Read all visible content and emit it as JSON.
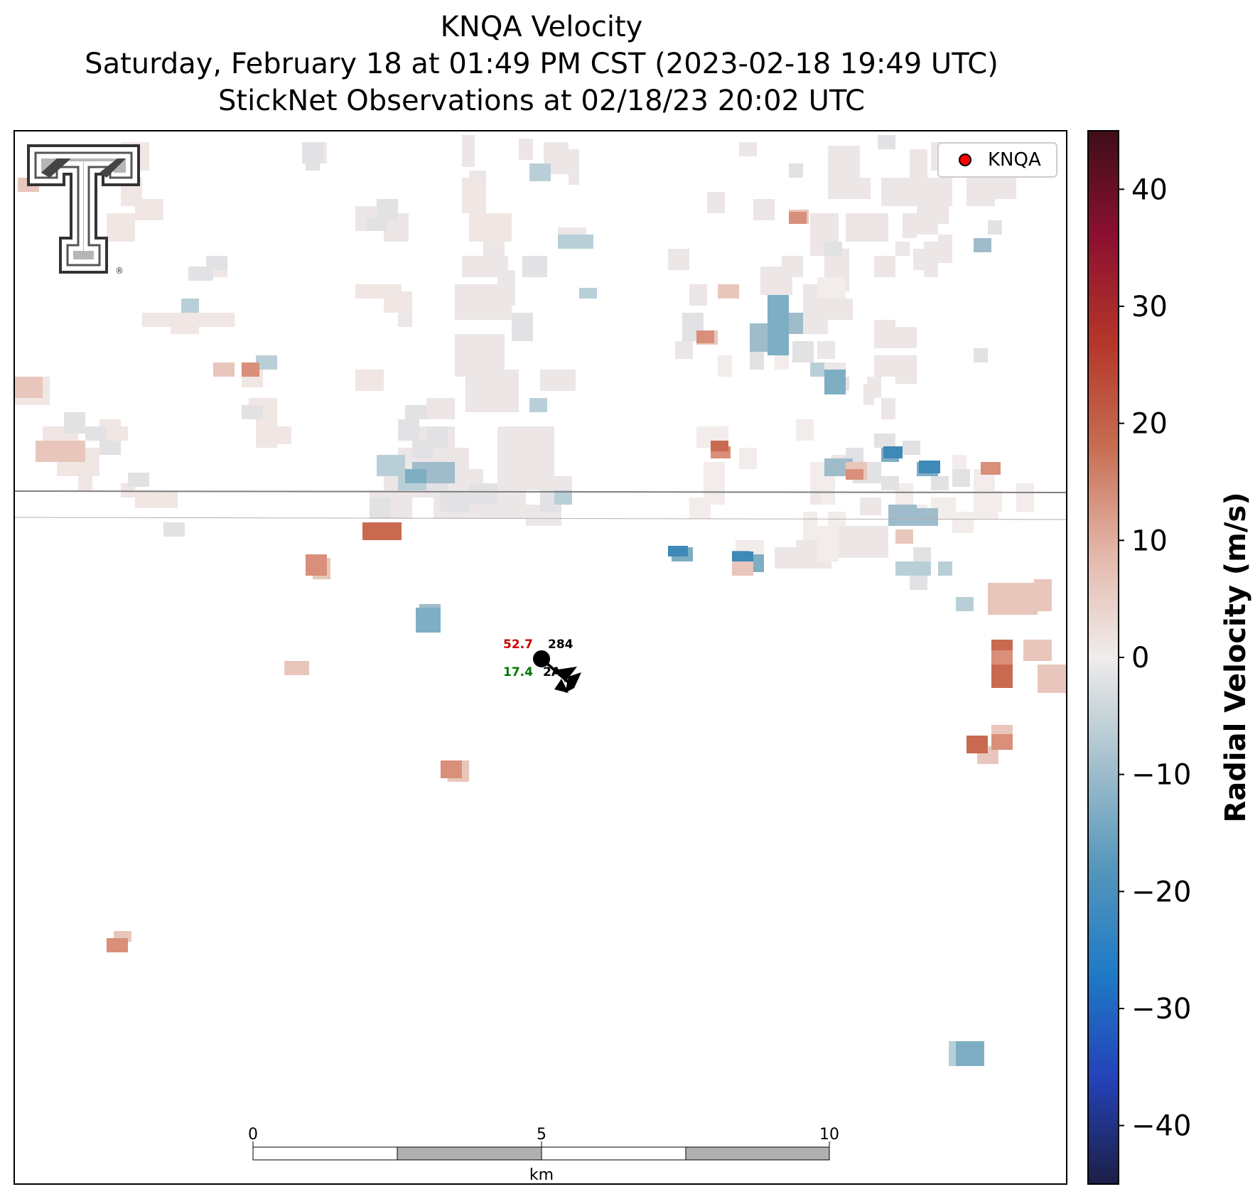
{
  "title": {
    "line1": "KNQA Velocity",
    "line2": "Saturday, February 18 at 01:49 PM CST (2023-02-18 19:49 UTC)",
    "line3": "StickNet Observations at 02/18/23 20:02 UTC"
  },
  "legend": {
    "label": "KNQA",
    "marker_color": "#ff0000"
  },
  "colorbar": {
    "label": "Radial Velocity (m/s)",
    "ticks": [
      "40",
      "30",
      "20",
      "10",
      "0",
      "−10",
      "−20",
      "−30",
      "−40"
    ],
    "range": [
      -45,
      45
    ],
    "colors": [
      "#1c1f45",
      "#2442b8",
      "#1f7ac6",
      "#5596bb",
      "#b4c9d2",
      "#f0ecec",
      "#e3b6a8",
      "#c76d52",
      "#b4362a",
      "#8c1030",
      "#3e0e18"
    ]
  },
  "scale_bar": {
    "ticks": [
      "0",
      "5",
      "10"
    ],
    "unit": "km"
  },
  "station": {
    "temperature": "52.7",
    "dewpoint": "17.4",
    "pressure": "284",
    "id": "2A",
    "temperature_color": "#cc0000",
    "dewpoint_color": "#007700"
  },
  "logo": {
    "name": "texas-tech-double-t-logo",
    "registered": "®"
  }
}
